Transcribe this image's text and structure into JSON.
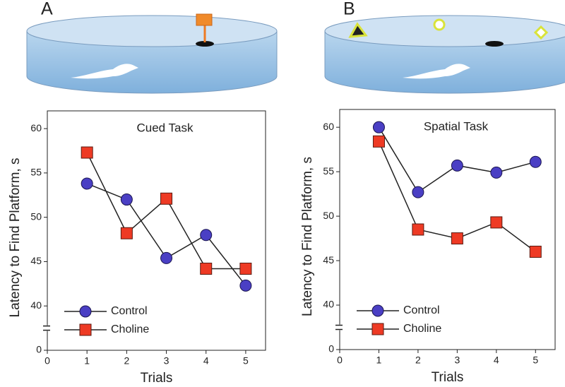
{
  "chart_data": [
    {
      "type": "line",
      "panel_label": "A",
      "title": "Cued Task",
      "x_label": "Trials",
      "y_label": "Latency to Find Platform, s",
      "x": [
        1,
        2,
        3,
        4,
        5
      ],
      "xlim": [
        0,
        5.5
      ],
      "xticks": [
        0,
        1,
        2,
        3,
        4,
        5
      ],
      "ylim": [
        0,
        62
      ],
      "ybreak": [
        0,
        40
      ],
      "yticks": [
        0,
        40,
        45,
        50,
        55,
        60
      ],
      "legend": "lower left",
      "series": [
        {
          "name": "Control",
          "color": "#4a3fc4",
          "marker": "circle",
          "values": [
            53.8,
            52,
            45.4,
            48,
            42.3
          ]
        },
        {
          "name": "Choline",
          "color": "#ee3a24",
          "marker": "square",
          "values": [
            57.3,
            48.2,
            52.1,
            44.2,
            44.2
          ]
        }
      ]
    },
    {
      "type": "line",
      "panel_label": "B",
      "title": "Spatial Task",
      "x_label": "Trials",
      "y_label": "Latency to Find Platform, s",
      "x": [
        1,
        2,
        3,
        4,
        5
      ],
      "xlim": [
        0,
        5.5
      ],
      "xticks": [
        0,
        1,
        2,
        3,
        4,
        5
      ],
      "ylim": [
        0,
        62
      ],
      "ybreak": [
        0,
        40
      ],
      "yticks": [
        0,
        40,
        45,
        50,
        55,
        60
      ],
      "legend": "lower left",
      "series": [
        {
          "name": "Control",
          "color": "#4a3fc4",
          "marker": "circle",
          "values": [
            60,
            52.7,
            55.7,
            54.9,
            56.1
          ]
        },
        {
          "name": "Choline",
          "color": "#ee3a24",
          "marker": "square",
          "values": [
            58.4,
            48.5,
            47.5,
            49.3,
            46
          ]
        }
      ]
    }
  ]
}
